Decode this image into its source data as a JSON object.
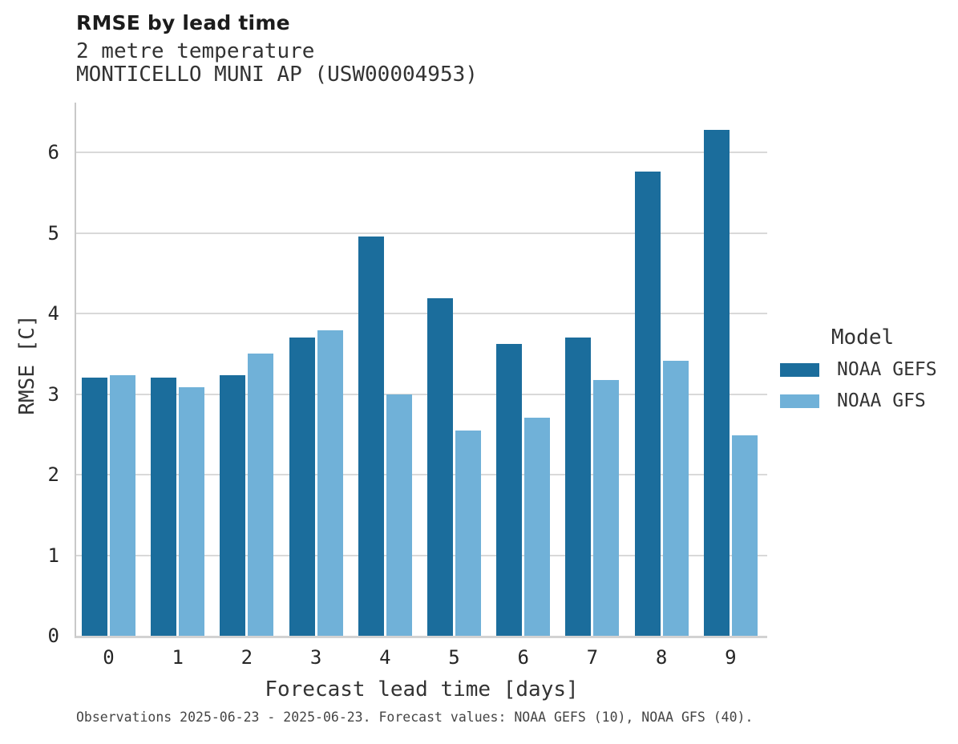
{
  "header": {
    "title": "RMSE by lead time",
    "subtitle1": "2 metre temperature",
    "subtitle2": "MONTICELLO MUNI AP (USW00004953)"
  },
  "chart_data": {
    "type": "bar",
    "title": "RMSE by lead time",
    "subtitle": [
      "2 metre temperature",
      "MONTICELLO MUNI AP (USW00004953)"
    ],
    "categories": [
      "0",
      "1",
      "2",
      "3",
      "4",
      "5",
      "6",
      "7",
      "8",
      "9"
    ],
    "series": [
      {
        "name": "NOAA GEFS",
        "color": "#1b6d9c",
        "values": [
          3.21,
          3.21,
          3.24,
          3.7,
          4.96,
          4.19,
          3.62,
          3.7,
          5.76,
          6.28
        ]
      },
      {
        "name": "NOAA GFS",
        "color": "#70b1d8",
        "values": [
          3.24,
          3.09,
          3.5,
          3.79,
          3.0,
          2.55,
          2.71,
          3.18,
          3.41,
          2.49
        ]
      }
    ],
    "xlabel": "Forecast lead time [days]",
    "ylabel": "RMSE [C]",
    "ylim": [
      0,
      6.62
    ],
    "yticks": [
      0,
      1,
      2,
      3,
      4,
      5,
      6
    ],
    "grid": "horizontal",
    "legend_title": "Model",
    "legend_position": "right"
  },
  "caption": {
    "text": "Observations 2025-06-23 - 2025-06-23. Forecast values: NOAA GEFS (10), NOAA GFS (40)."
  }
}
